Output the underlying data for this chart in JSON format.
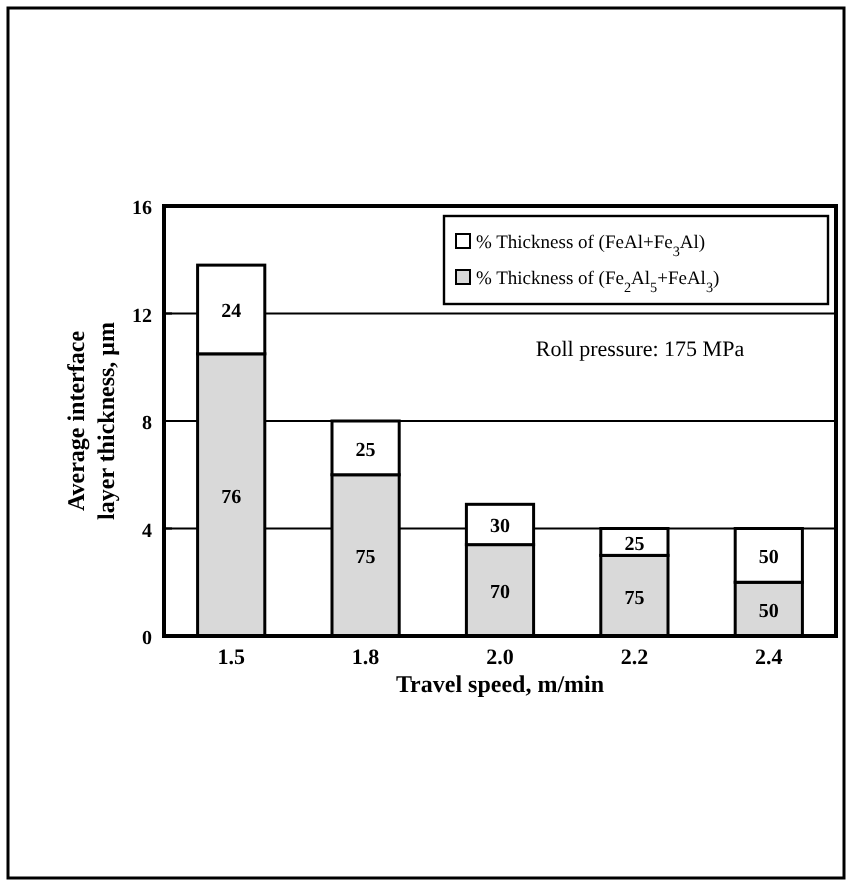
{
  "chart_data": {
    "type": "bar",
    "stacked": true,
    "xlabel": "Travel speed, m/min",
    "ylabel": "Average interface layer thickness, μm",
    "categories": [
      "1.5",
      "1.8",
      "2.0",
      "2.2",
      "2.4"
    ],
    "series": [
      {
        "name": "% Thickness of (Fe$_{2}$Al$_{5}$+FeAl$_{3}$)",
        "color": "#d9d9d9",
        "values": [
          10.5,
          6,
          3.4,
          3,
          2
        ]
      },
      {
        "name": "% Thickness of (FeAl+Fe$_{3}$Al)",
        "color": "#ffffff",
        "values": [
          3.3,
          2,
          1.5,
          1,
          2
        ]
      }
    ],
    "ylim": [
      0,
      16
    ],
    "yticks": [
      0,
      4,
      8,
      12,
      16
    ],
    "grid": "y",
    "legend": "top right",
    "annotations": [
      "Roll pressure: 175 MPa",
      "76",
      "24",
      "75",
      "25",
      "70",
      "30",
      "75",
      "25",
      "50",
      "50"
    ]
  }
}
